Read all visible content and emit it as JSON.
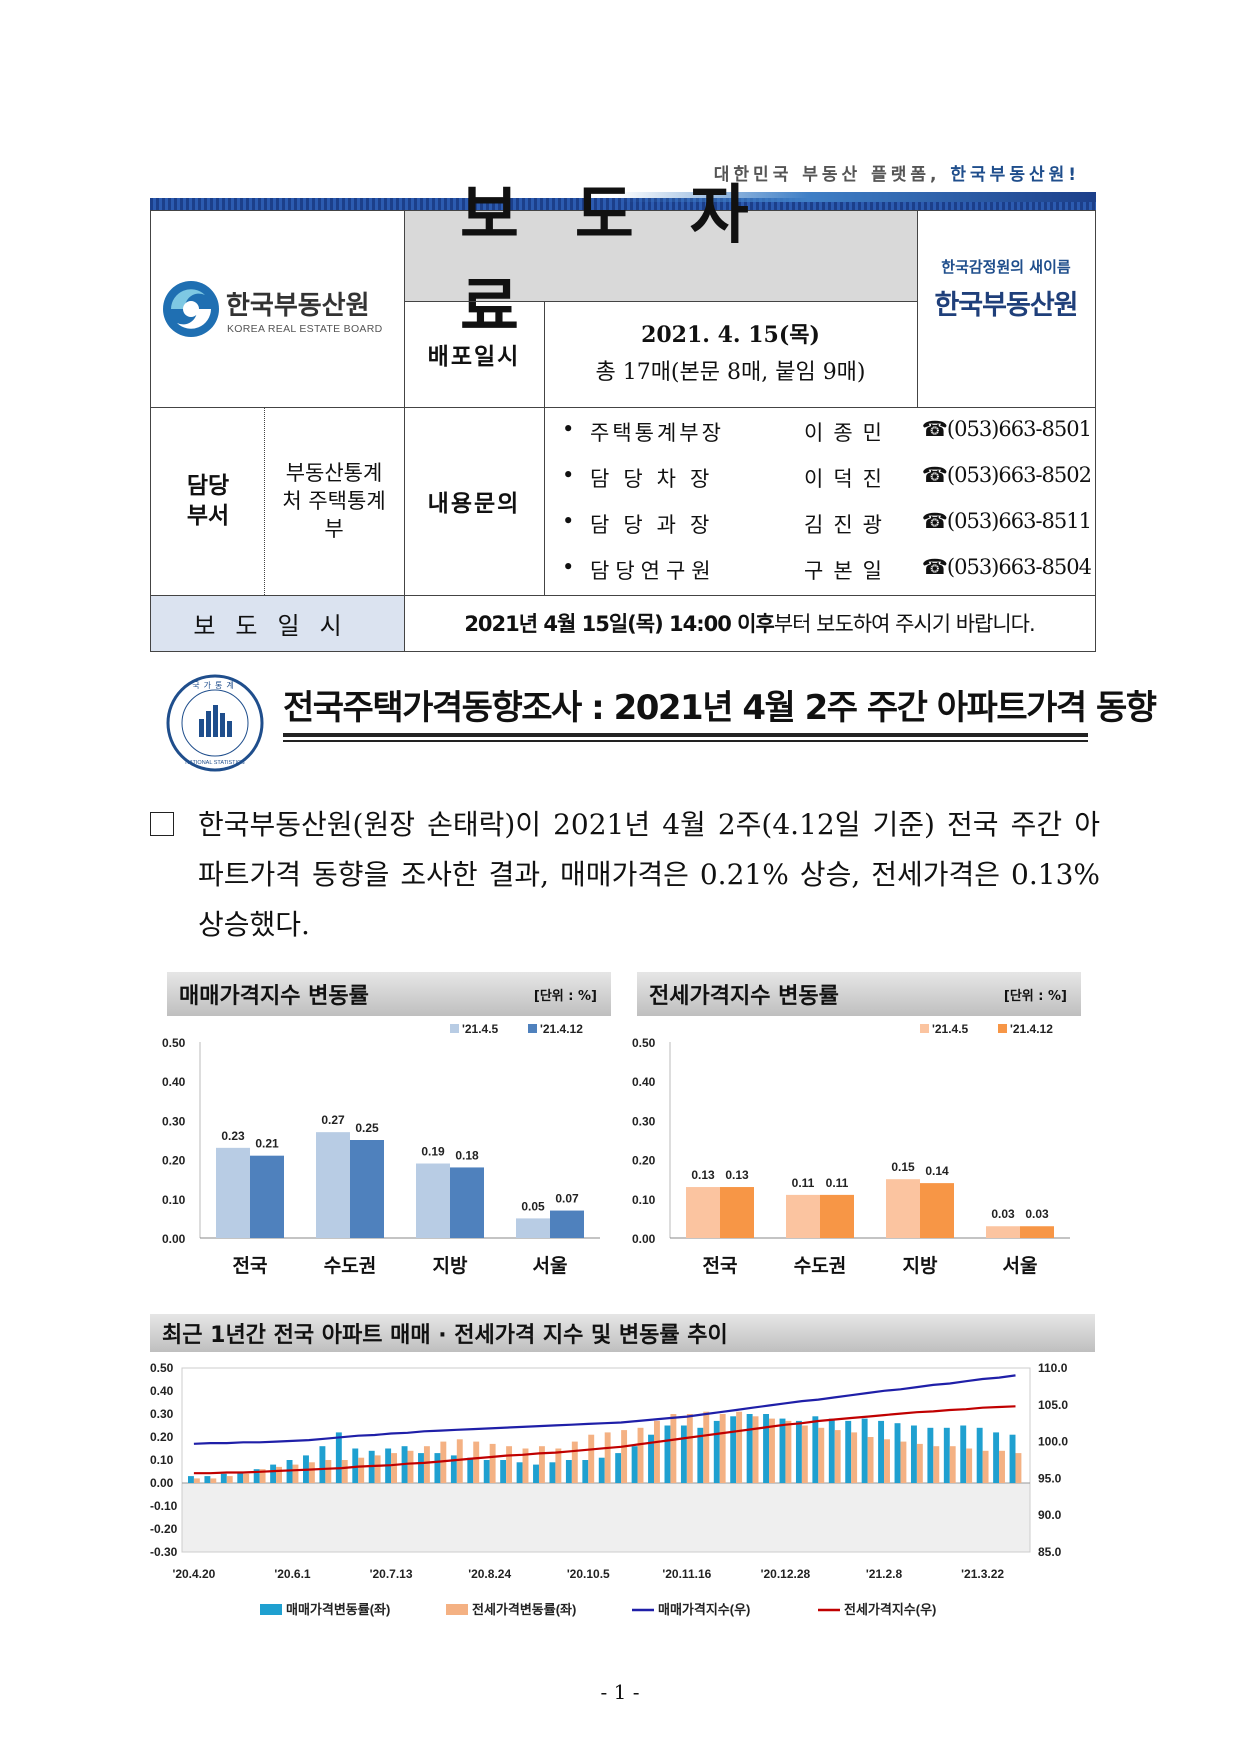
{
  "slogan": {
    "text": "대한민국 부동산 플랫폼, ",
    "highlight": "한국부동산원!"
  },
  "header": {
    "org_name": "한국부동산원",
    "org_name_en": "KOREA REAL ESTATE BOARD",
    "doc_title": "보도자료",
    "former_name_note": "한국감정원의 새이름",
    "right_org": "한국부동산원",
    "dist_label": "배포일시",
    "dist_date": "2021. 4. 15(목)",
    "dist_pages": "총 17매(본문 8매, 붙임 9매)",
    "dept_label": "담당 부서",
    "dept_name": "부동산통계처 주택통계부",
    "inquiry_label": "내용문의",
    "contacts": [
      {
        "role": "주택통계부장",
        "name": "이종민",
        "phone": "☎(053)663-8501"
      },
      {
        "role": "담당차장",
        "name": "이덕진",
        "phone": "☎(053)663-8502"
      },
      {
        "role": "담당과장",
        "name": "김진광",
        "phone": "☎(053)663-8511"
      },
      {
        "role": "담당연구원",
        "name": "구본일",
        "phone": "☎(053)663-8504"
      }
    ],
    "release_label": "보도일시",
    "release_value_bold": "2021년 4월 15일(목) 14:00 이후",
    "release_value_rest": "부터 보도하여 주시기 바랍니다."
  },
  "stat_logo": {
    "ring_text": "국가통계",
    "ring_text_en": "NATIONAL STATISTICS"
  },
  "headline": "전국주택가격동향조사 : 2021년 4월 2주 주간 아파트가격 동향",
  "summary": "한국부동산원(원장 손태락)이 2021년 4월 2주(4.12일 기준) 전국 주간 아파트가격 동향을 조사한 결과, 매매가격은 0.21% 상승, 전세가격은 0.13% 상승했다.",
  "chart_data": [
    {
      "type": "bar",
      "title": "매매가격지수 변동률",
      "unit": "[단위 : %]",
      "categories": [
        "전국",
        "수도권",
        "지방",
        "서울"
      ],
      "series": [
        {
          "name": "'21.4.5",
          "values": [
            0.23,
            0.27,
            0.19,
            0.05
          ],
          "color": "#b8cce4"
        },
        {
          "name": "'21.4.12",
          "values": [
            0.21,
            0.25,
            0.18,
            0.07
          ],
          "color": "#4f81bd"
        }
      ],
      "ylim": [
        0,
        0.5
      ],
      "yticks": [
        "0.00",
        "0.10",
        "0.20",
        "0.30",
        "0.40",
        "0.50"
      ],
      "legend": "top-right"
    },
    {
      "type": "bar",
      "title": "전세가격지수 변동률",
      "unit": "[단위 : %]",
      "categories": [
        "전국",
        "수도권",
        "지방",
        "서울"
      ],
      "series": [
        {
          "name": "'21.4.5",
          "values": [
            0.13,
            0.11,
            0.15,
            0.03
          ],
          "color": "#fbc4a0"
        },
        {
          "name": "'21.4.12",
          "values": [
            0.13,
            0.11,
            0.14,
            0.03
          ],
          "color": "#f79646"
        }
      ],
      "ylim": [
        0,
        0.5
      ],
      "yticks": [
        "0.00",
        "0.10",
        "0.20",
        "0.30",
        "0.40",
        "0.50"
      ],
      "legend": "top-right"
    },
    {
      "type": "bar+line",
      "title": "최근 1년간 전국 아파트 매매 · 전세가격 지수 및 변동률 추이",
      "x_labels": [
        "'20.4.20",
        "'20.6.1",
        "'20.7.13",
        "'20.8.24",
        "'20.10.5",
        "'20.11.16",
        "'20.12.28",
        "'21.2.8",
        "'21.3.22"
      ],
      "y_left_ticks": [
        "0.50",
        "0.40",
        "0.30",
        "0.20",
        "0.10",
        "0.00",
        "-0.10",
        "-0.20",
        "-0.30"
      ],
      "y_right_ticks": [
        "110.0",
        "105.0",
        "100.0",
        "95.0",
        "90.0",
        "85.0"
      ],
      "ylim_left": [
        -0.3,
        0.5
      ],
      "ylim_right": [
        85,
        110
      ],
      "series": [
        {
          "name": "매매가격변동률(좌)",
          "kind": "bar",
          "color": "#1fa0d0",
          "values": [
            0.03,
            0.03,
            0.04,
            0.05,
            0.06,
            0.08,
            0.1,
            0.12,
            0.16,
            0.22,
            0.15,
            0.14,
            0.15,
            0.16,
            0.13,
            0.13,
            0.12,
            0.11,
            0.1,
            0.1,
            0.09,
            0.08,
            0.09,
            0.1,
            0.1,
            0.11,
            0.13,
            0.16,
            0.21,
            0.25,
            0.25,
            0.24,
            0.27,
            0.29,
            0.3,
            0.3,
            0.28,
            0.27,
            0.29,
            0.28,
            0.27,
            0.28,
            0.27,
            0.26,
            0.25,
            0.24,
            0.24,
            0.25,
            0.24,
            0.22,
            0.21
          ]
        },
        {
          "name": "전세가격변동률(좌)",
          "kind": "bar",
          "color": "#f4b183",
          "values": [
            0.02,
            0.02,
            0.03,
            0.04,
            0.06,
            0.07,
            0.08,
            0.09,
            0.1,
            0.1,
            0.11,
            0.12,
            0.13,
            0.14,
            0.16,
            0.18,
            0.19,
            0.18,
            0.17,
            0.16,
            0.15,
            0.16,
            0.15,
            0.18,
            0.21,
            0.22,
            0.23,
            0.24,
            0.27,
            0.3,
            0.3,
            0.31,
            0.3,
            0.31,
            0.29,
            0.28,
            0.27,
            0.25,
            0.24,
            0.23,
            0.22,
            0.2,
            0.19,
            0.18,
            0.17,
            0.16,
            0.16,
            0.15,
            0.14,
            0.14,
            0.13
          ]
        },
        {
          "name": "매매가격지수(우)",
          "kind": "line",
          "color": "#1f1fa8",
          "values": [
            99.7,
            99.8,
            99.8,
            99.9,
            99.9,
            100.0,
            100.1,
            100.2,
            100.4,
            100.6,
            100.8,
            100.9,
            101.1,
            101.2,
            101.4,
            101.5,
            101.6,
            101.7,
            101.8,
            101.9,
            102.0,
            102.1,
            102.2,
            102.3,
            102.4,
            102.5,
            102.6,
            102.8,
            103.0,
            103.2,
            103.4,
            103.7,
            104.0,
            104.3,
            104.6,
            104.9,
            105.2,
            105.5,
            105.7,
            106.0,
            106.3,
            106.6,
            106.9,
            107.1,
            107.4,
            107.7,
            107.9,
            108.2,
            108.5,
            108.7,
            109.0
          ]
        },
        {
          "name": "전세가격지수(우)",
          "kind": "line",
          "color": "#c00000",
          "values": [
            95.7,
            95.7,
            95.8,
            95.8,
            95.9,
            96.0,
            96.1,
            96.2,
            96.3,
            96.4,
            96.6,
            96.7,
            96.8,
            97.0,
            97.1,
            97.3,
            97.5,
            97.7,
            97.9,
            98.1,
            98.2,
            98.4,
            98.5,
            98.7,
            98.9,
            99.1,
            99.3,
            99.6,
            99.9,
            100.2,
            100.5,
            100.8,
            101.1,
            101.4,
            101.7,
            102.0,
            102.3,
            102.5,
            102.8,
            103.0,
            103.2,
            103.4,
            103.6,
            103.8,
            104.0,
            104.1,
            104.3,
            104.4,
            104.6,
            104.7,
            104.8
          ]
        }
      ]
    }
  ],
  "page_number": "- 1 -"
}
